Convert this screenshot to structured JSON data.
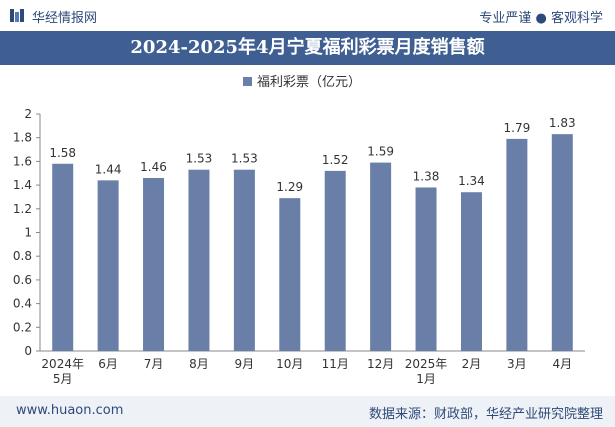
{
  "header": {
    "brand": "华经情报网",
    "tagline": "专业严谨 ● 客观科学"
  },
  "colors": {
    "bar": "#6a7fa8",
    "title_bg": "#3f5f93",
    "brand_text": "#2d4a7a"
  },
  "chart_data": {
    "type": "bar",
    "title": "2024-2025年4月宁夏福利彩票月度销售额",
    "legend": "top-center",
    "grid": false,
    "categories": [
      "2024年\n5月",
      "6月",
      "7月",
      "8月",
      "9月",
      "10月",
      "11月",
      "12月",
      "2025年\n1月",
      "2月",
      "3月",
      "4月"
    ],
    "series": [
      {
        "name": "福利彩票（亿元）",
        "values": [
          1.58,
          1.44,
          1.46,
          1.53,
          1.53,
          1.29,
          1.52,
          1.59,
          1.38,
          1.34,
          1.79,
          1.83
        ]
      }
    ],
    "ylim": [
      0,
      2
    ],
    "yticks": [
      0,
      0.2,
      0.4,
      0.6,
      0.8,
      1,
      1.2,
      1.4,
      1.6,
      1.8,
      2
    ]
  },
  "footer": {
    "website": "www.huaon.com",
    "source": "数据来源：财政部，华经产业研究院整理"
  }
}
